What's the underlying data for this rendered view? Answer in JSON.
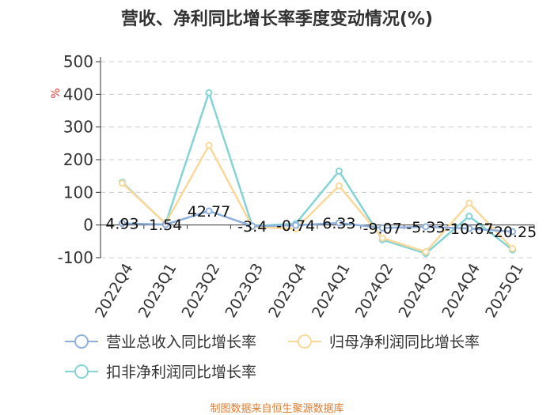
{
  "chart_data": {
    "type": "line",
    "title": "营收、净利同比增长率季度变动情况(%)",
    "ylabel": "%",
    "ylim": [
      -100,
      500
    ],
    "yticks": [
      "500",
      "400",
      "300",
      "200",
      "100",
      "0",
      "-100"
    ],
    "categories": [
      "2022Q4",
      "2023Q1",
      "2023Q2",
      "2023Q3",
      "2023Q4",
      "2024Q1",
      "2024Q2",
      "2024Q3",
      "2024Q4",
      "2025Q1"
    ],
    "grid": true,
    "legend_position": "bottom",
    "series": [
      {
        "name": "营业总收入同比增长率",
        "color": "#8fb0dc",
        "values": [
          4.93,
          1.54,
          42.77,
          -3.4,
          -0.74,
          6.33,
          -9.07,
          -5.33,
          -10.67,
          -20.25
        ],
        "labels": [
          "4.93",
          "1.54",
          "42.77",
          "-3.4",
          "-0.74",
          "6.33",
          "-9.07",
          "-5.33",
          "-10.67",
          "-20.25"
        ]
      },
      {
        "name": "归母净利润同比增长率",
        "color": "#fbd89a",
        "values": [
          128,
          5,
          244,
          -5,
          -12,
          120,
          -40,
          -82,
          67,
          -72
        ]
      },
      {
        "name": "扣非净利润同比增长率",
        "color": "#84d4d6",
        "values": [
          131,
          4,
          405,
          -3,
          4,
          165,
          -45,
          -87,
          27,
          -76
        ]
      }
    ]
  },
  "footer": {
    "source": "制图数据来自恒生聚源数据库"
  }
}
